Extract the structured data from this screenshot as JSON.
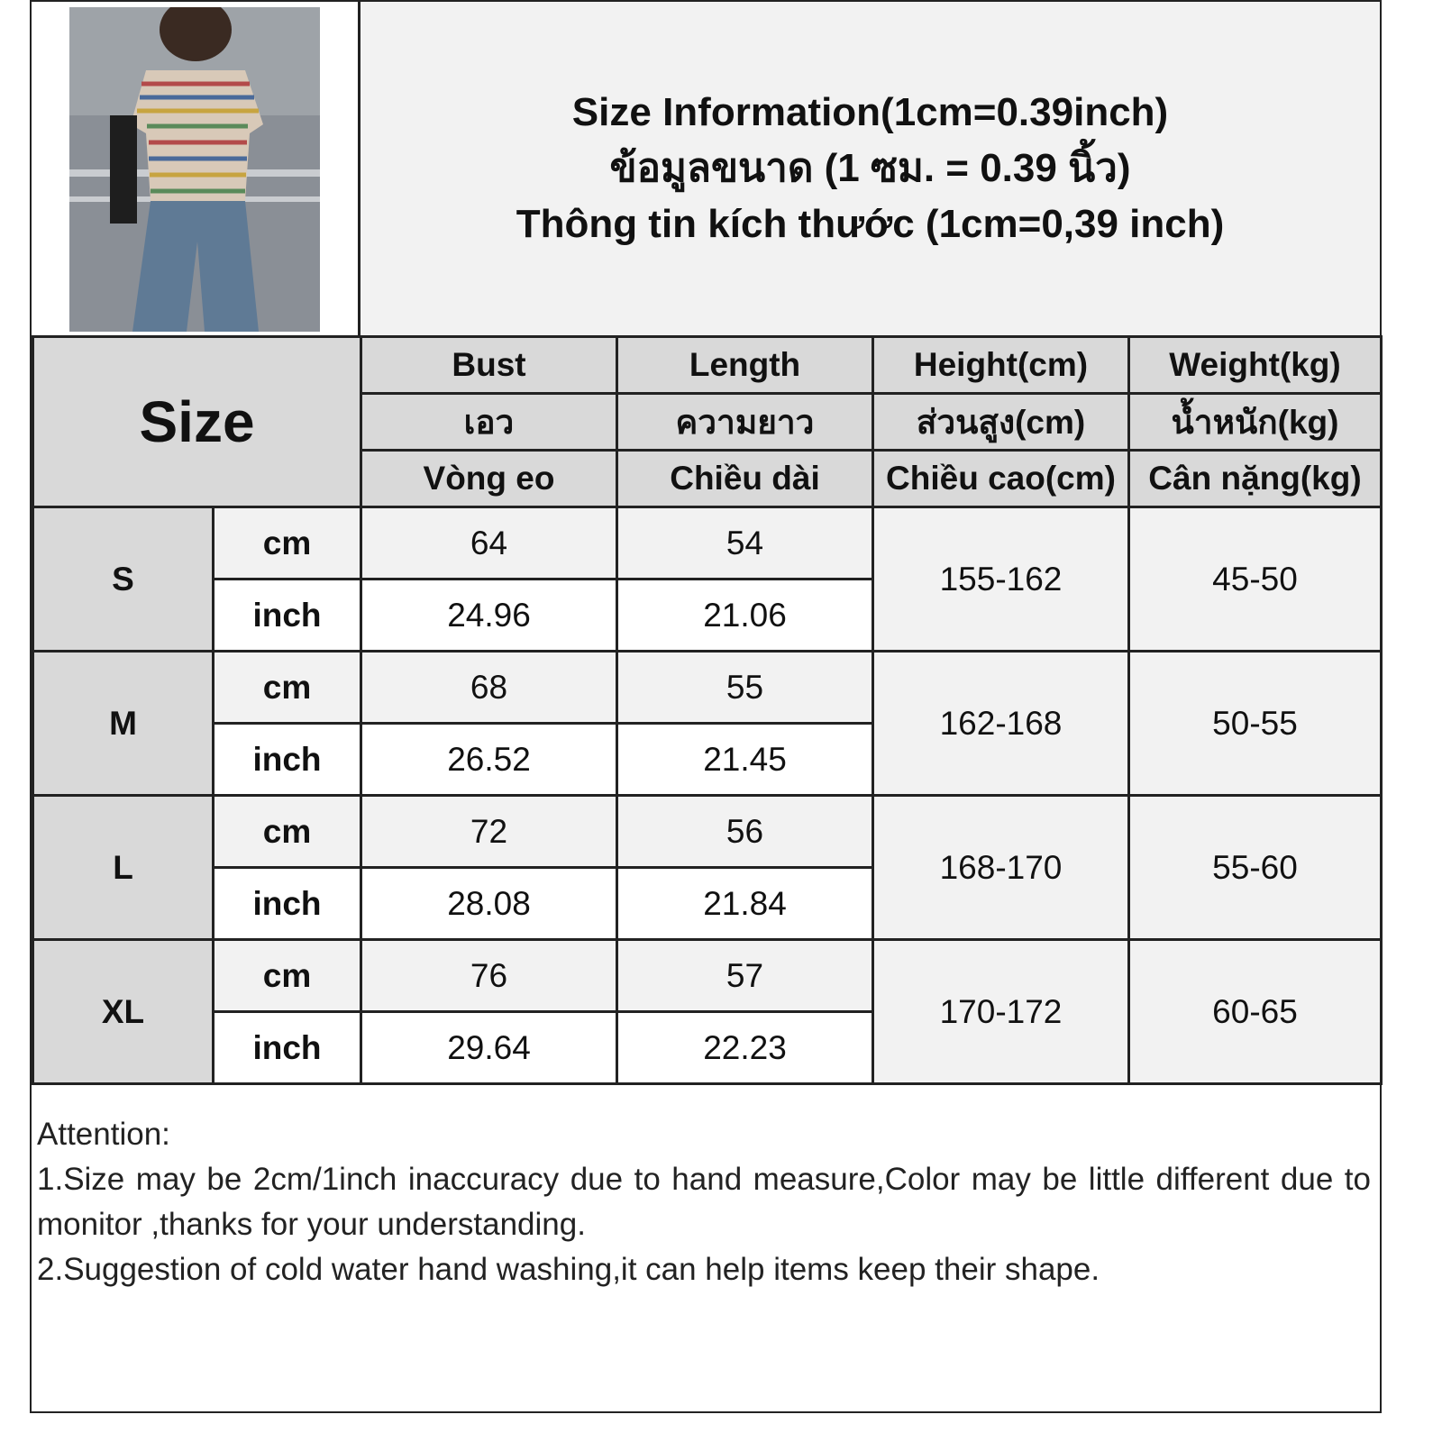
{
  "title": {
    "en": "Size Information(1cm=0.39inch)",
    "th": "ข้อมูลขนาด (1 ซม. = 0.39 นิ้ว)",
    "vi": "Thông tin kích thước (1cm=0,39 inch)"
  },
  "table": {
    "size_label": "Size",
    "columns": [
      {
        "en": "Bust",
        "th": "เอว",
        "vi": "Vòng eo"
      },
      {
        "en": "Length",
        "th": "ความยาว",
        "vi": "Chiều dài"
      },
      {
        "en": "Height(cm)",
        "th": "ส่วนสูง(cm)",
        "vi": "Chiều cao(cm)"
      },
      {
        "en": "Weight(kg)",
        "th": "น้ำหนัก(kg)",
        "vi": "Cân nặng(kg)"
      }
    ],
    "unit_cm": "cm",
    "unit_inch": "inch",
    "rows": [
      {
        "size": "S",
        "bust_cm": "64",
        "length_cm": "54",
        "bust_inch": "24.96",
        "length_inch": "21.06",
        "height": "155-162",
        "weight": "45-50"
      },
      {
        "size": "M",
        "bust_cm": "68",
        "length_cm": "55",
        "bust_inch": "26.52",
        "length_inch": "21.45",
        "height": "162-168",
        "weight": "50-55"
      },
      {
        "size": "L",
        "bust_cm": "72",
        "length_cm": "56",
        "bust_inch": "28.08",
        "length_inch": "21.84",
        "height": "168-170",
        "weight": "55-60"
      },
      {
        "size": "XL",
        "bust_cm": "76",
        "length_cm": "57",
        "bust_inch": "29.64",
        "length_inch": "22.23",
        "height": "170-172",
        "weight": "60-65"
      }
    ]
  },
  "notes": {
    "heading": "Attention:",
    "items": [
      "1.Size may be 2cm/1inch inaccuracy due to hand measure,Color may be little different due to monitor ,thanks for your understanding.",
      "2.Suggestion of cold water hand washing,it can help items keep their shape."
    ]
  },
  "colors": {
    "header": "#d9d9d9",
    "cm_row": "#f2f2f2",
    "inch_row": "#ffffff",
    "border": "#222222"
  }
}
